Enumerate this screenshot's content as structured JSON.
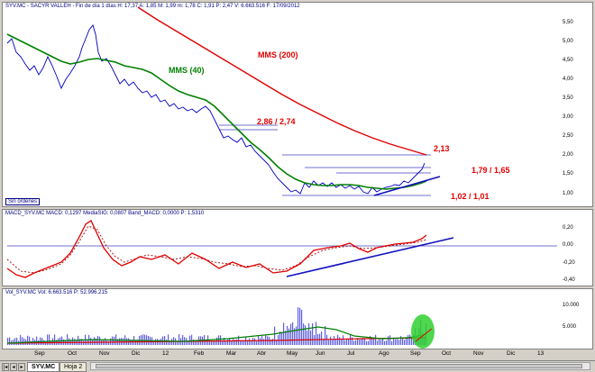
{
  "header": {
    "title": "SYV.MC - SACYR VALLEH - Fin de día 1 días H: 17,37 A: 1,85 M: 1,99 m: 1,78 C: 1,91 P: 2,47 V: 6.663.516 F: 17/09/2012"
  },
  "price_axis": [
    "5,50",
    "5,00",
    "4,50",
    "4,00",
    "3,50",
    "3,00",
    "2,50",
    "2,00",
    "1,50",
    "1,00"
  ],
  "macd_title": "MACD_SYV.MC MACD: 0,1297 MediaSIG: 0,0807 Band_MACD: 0,0000 P: 1,5310",
  "macd_axis": [
    "0,20",
    "0,00",
    "-0,20",
    "-0,40"
  ],
  "vol_title": "Vol_SYV.MC Vol: 6.663.516 P: 52.996.215",
  "vol_axis": [
    "10.000",
    "5.000"
  ],
  "x_axis": [
    "Sep",
    "Oct",
    "Nov",
    "Dic",
    "12",
    "Feb",
    "Mar",
    "Abr",
    "May",
    "Jun",
    "Jul",
    "Ago",
    "Sep",
    "Oct",
    "Nov",
    "Dic",
    "13"
  ],
  "annotations": {
    "mms40": "MMS (40)",
    "mms200": "MMS (200)",
    "lvl1": "2,86 / 2,74",
    "lvl2": "2,13",
    "lvl3": "1,79 / 1,65",
    "lvl4": "1,02 / 1,01"
  },
  "sin_ordenes": "Sin órdenes",
  "tabs": [
    "SYV.MC",
    "Hoja 2"
  ],
  "colors": {
    "price": "#0000c0",
    "mms40": "#008000",
    "mms200": "#e00000",
    "macd": "#e00000",
    "signal": "#8b0000",
    "trend": "#1010c0",
    "volume": "#6060e0"
  }
}
